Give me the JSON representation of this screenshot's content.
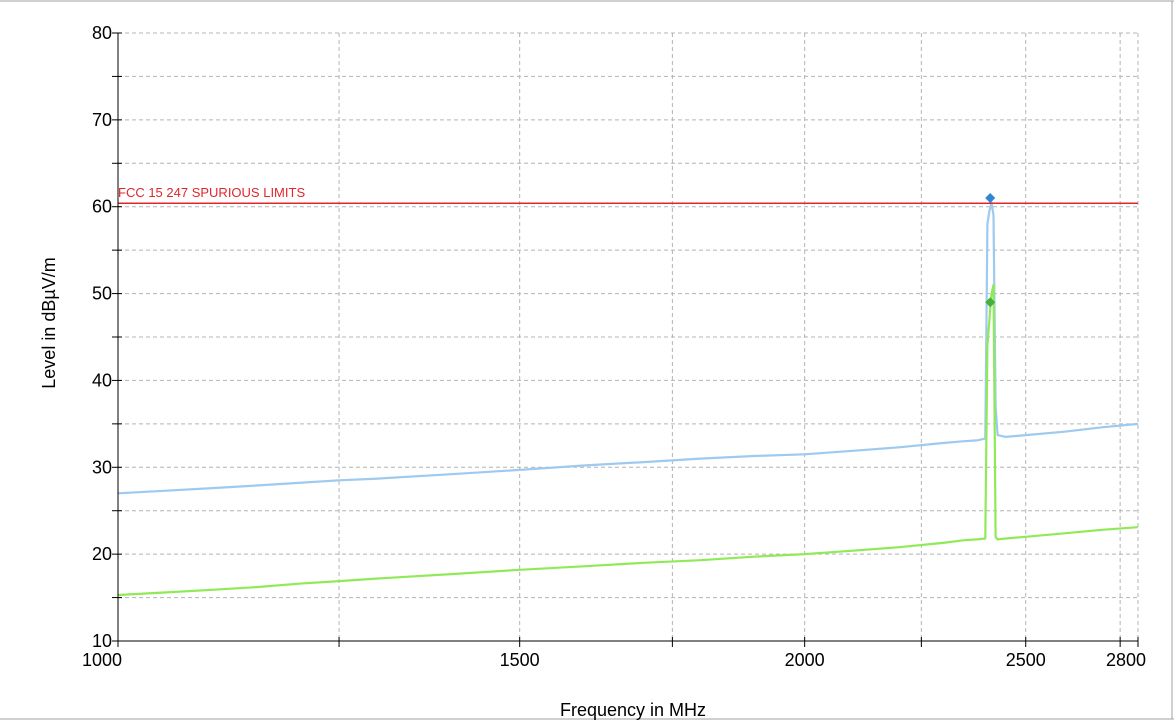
{
  "chart_data": {
    "type": "line",
    "title": "",
    "xlabel": "Frequency in MHz",
    "ylabel": "Level in dBµV/m",
    "xlim": [
      1000,
      2800
    ],
    "ylim": [
      10,
      80
    ],
    "x_scale": "log",
    "x_ticks": [
      1000,
      1500,
      2000,
      2500,
      2800
    ],
    "x_minor_ticks": [
      1250,
      1750,
      2250,
      2750
    ],
    "y_ticks": [
      10,
      20,
      30,
      40,
      50,
      60,
      70,
      80
    ],
    "grid": true,
    "legend": "none",
    "series": [
      {
        "color": "#9ec9f0",
        "x": [
          1000,
          1050,
          1100,
          1150,
          1200,
          1250,
          1300,
          1400,
          1500,
          1600,
          1700,
          1800,
          1900,
          2000,
          2100,
          2200,
          2300,
          2350,
          2380,
          2400,
          2405,
          2410,
          2415,
          2420,
          2425,
          2430,
          2450,
          2500,
          2600,
          2700,
          2800
        ],
        "y": [
          27,
          27.3,
          27.6,
          27.9,
          28.2,
          28.5,
          28.7,
          29.2,
          29.7,
          30.2,
          30.6,
          31,
          31.3,
          31.5,
          31.9,
          32.3,
          32.8,
          33,
          33.1,
          33.3,
          58,
          59.5,
          60.5,
          59,
          37,
          33.7,
          33.5,
          33.7,
          34.1,
          34.6,
          35
        ]
      },
      {
        "color": "#90ea58",
        "x": [
          1000,
          1050,
          1100,
          1150,
          1200,
          1250,
          1300,
          1400,
          1500,
          1600,
          1700,
          1800,
          1900,
          2000,
          2100,
          2200,
          2300,
          2350,
          2380,
          2400,
          2405,
          2410,
          2415,
          2420,
          2425,
          2430,
          2450,
          2500,
          2600,
          2700,
          2800
        ],
        "y": [
          15.3,
          15.6,
          15.9,
          16.2,
          16.6,
          16.9,
          17.2,
          17.7,
          18.2,
          18.6,
          19,
          19.3,
          19.7,
          20,
          20.4,
          20.8,
          21.3,
          21.6,
          21.7,
          21.8,
          44,
          47,
          50,
          51,
          22,
          21.7,
          21.8,
          22,
          22.4,
          22.8,
          23.1
        ]
      },
      {
        "name": "FCC 15 247 SPURIOUS LIMITS",
        "color": "#e0262c",
        "x": [
          1000,
          2800
        ],
        "y": [
          60.4,
          60.4
        ]
      }
    ],
    "markers": [
      {
        "x": 2412,
        "y": 61,
        "color": "#2f86d6"
      },
      {
        "x": 2412,
        "y": 49,
        "color": "#45b03a"
      }
    ],
    "annotations": [
      {
        "text": "FCC 15 247 SPURIOUS LIMITS",
        "x": 1000,
        "y": 60.4,
        "color": "#e0262c"
      }
    ]
  }
}
